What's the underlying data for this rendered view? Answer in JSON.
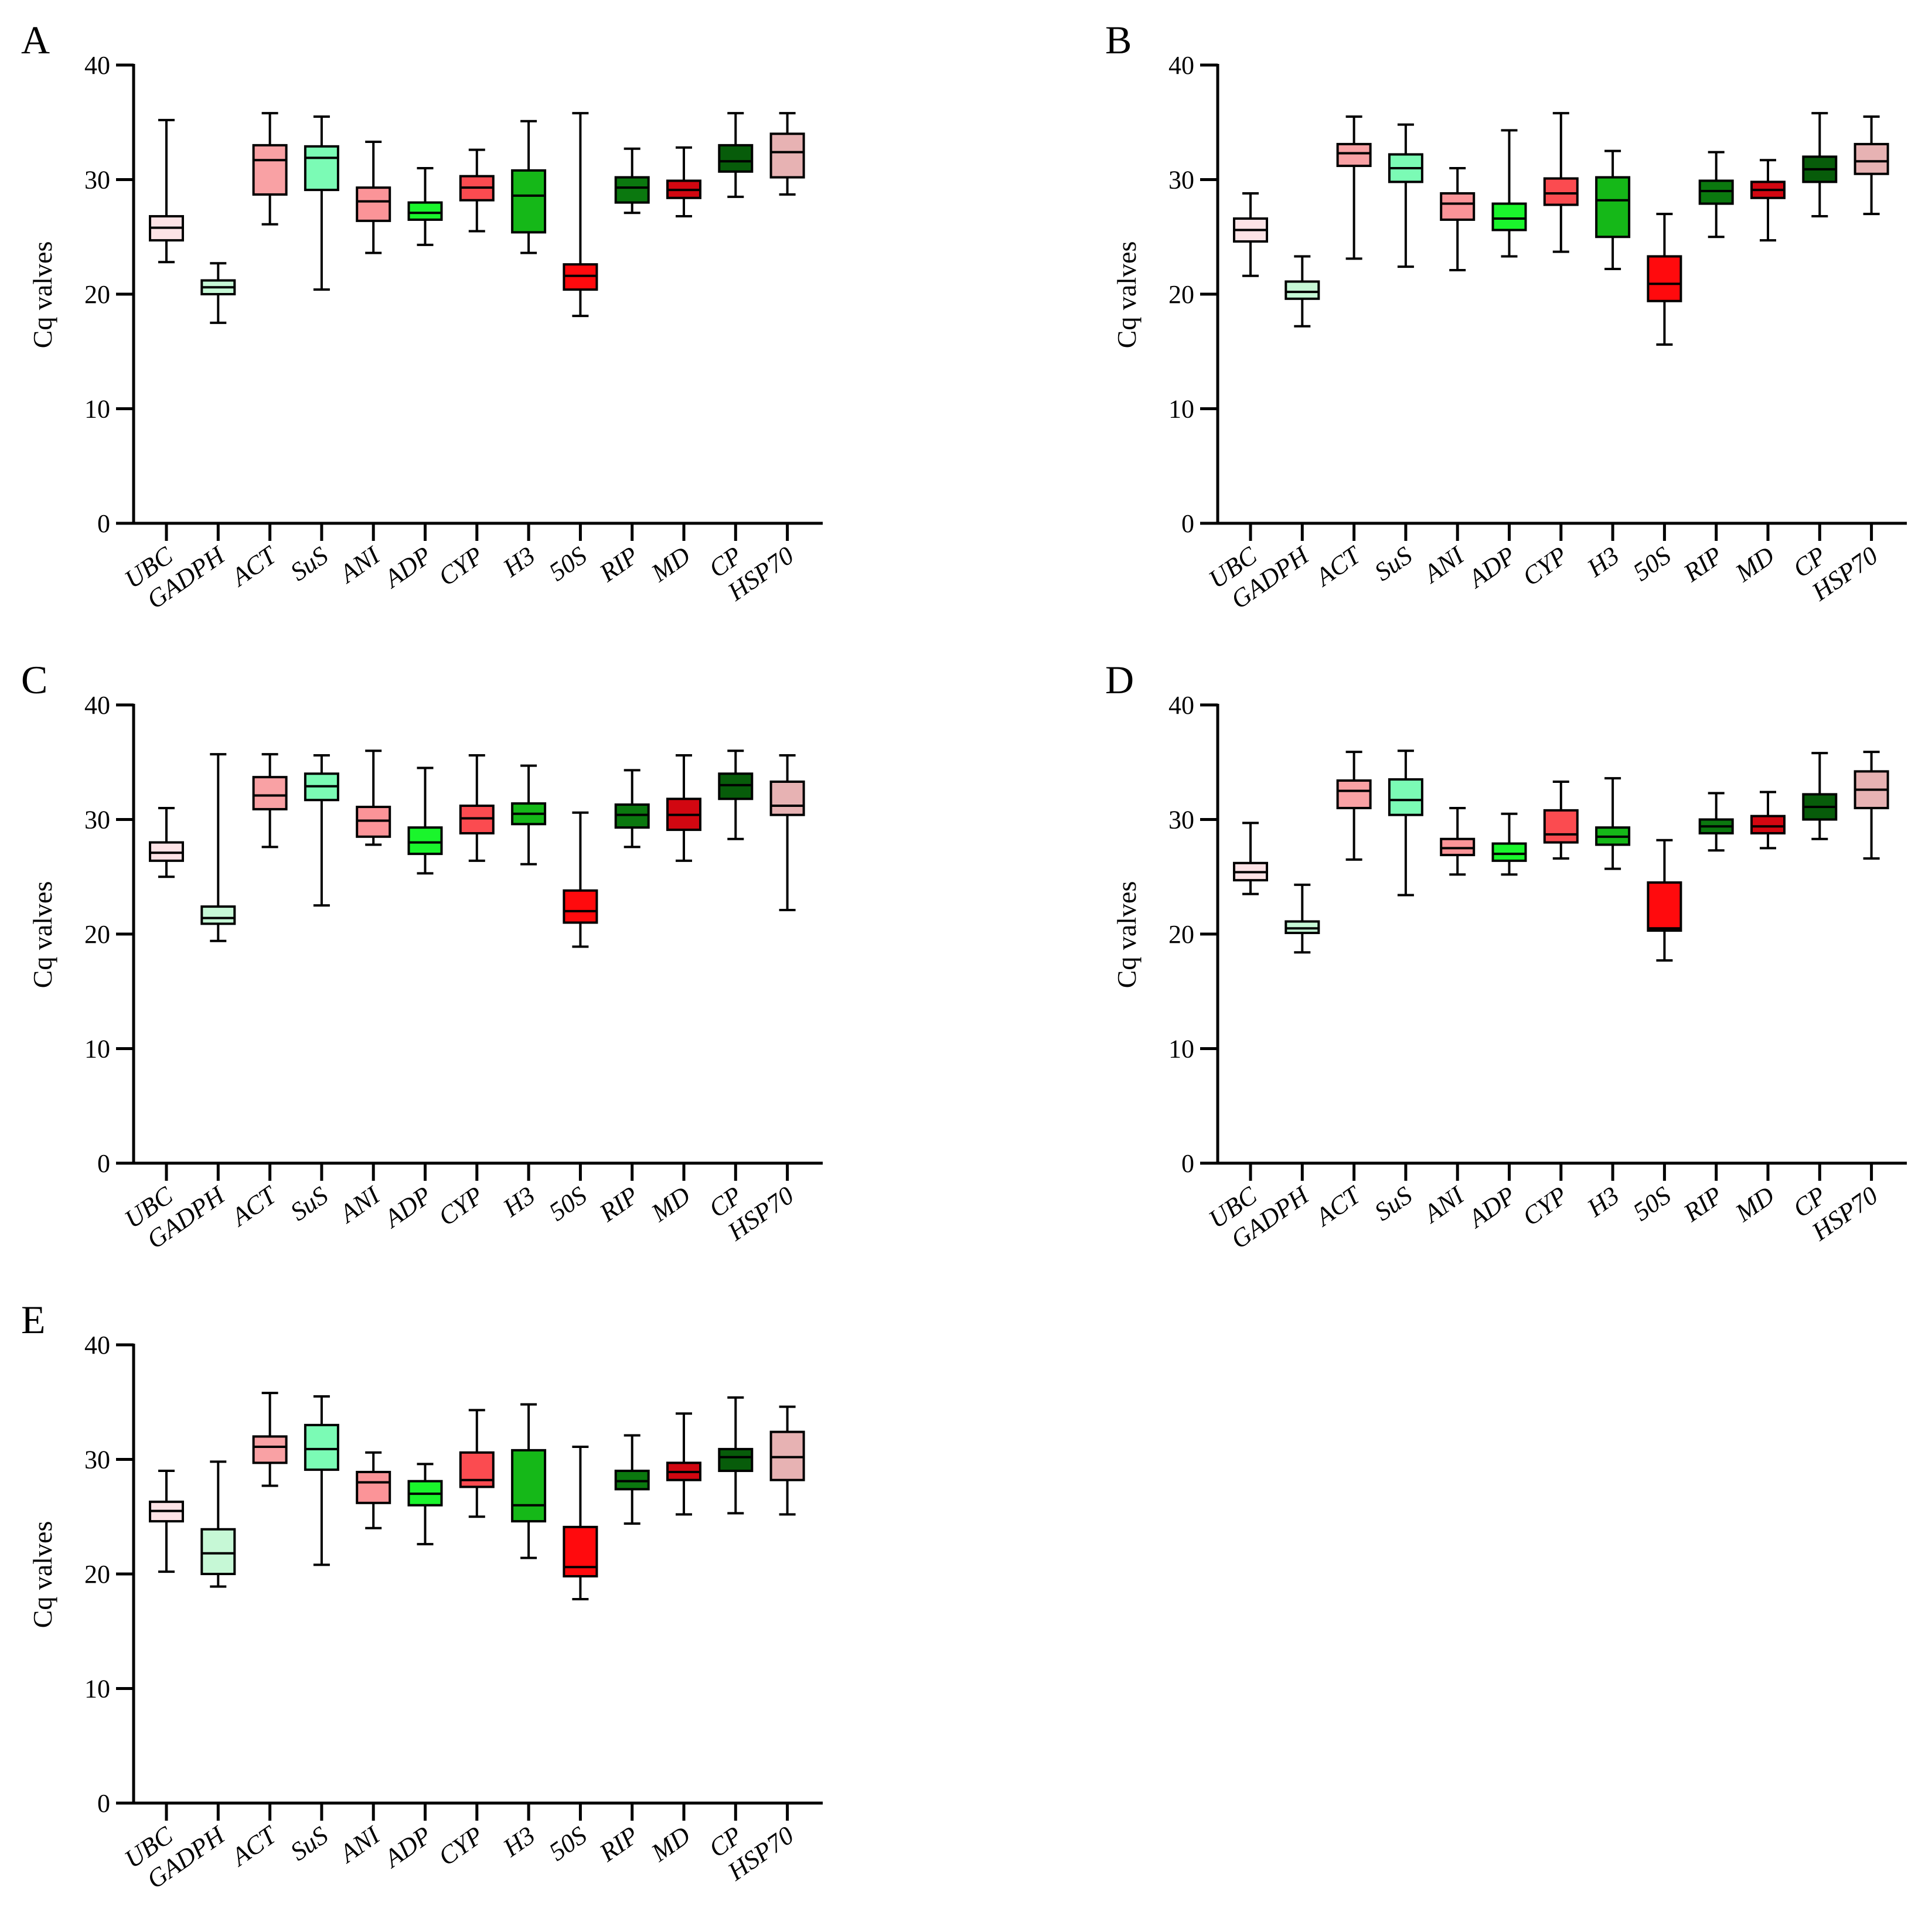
{
  "chart_data": [
    {
      "panel": "A",
      "type": "boxplot",
      "ylabel": "Cq valves",
      "ylim": [
        0,
        40
      ],
      "yticks": [
        0,
        10,
        20,
        30,
        40
      ],
      "categories": [
        "UBC",
        "GADPH",
        "ACT",
        "SuS",
        "ANI",
        "ADP",
        "CYP",
        "H3",
        "50S",
        "RIP",
        "MD",
        "CP",
        "HSP70"
      ],
      "boxes": [
        {
          "min": 22.8,
          "q1": 24.7,
          "median": 25.8,
          "q3": 26.8,
          "max": 35.2
        },
        {
          "min": 17.5,
          "q1": 20.0,
          "median": 20.6,
          "q3": 21.2,
          "max": 22.7
        },
        {
          "min": 26.1,
          "q1": 28.7,
          "median": 31.7,
          "q3": 33.0,
          "max": 35.8
        },
        {
          "min": 20.4,
          "q1": 29.1,
          "median": 31.9,
          "q3": 32.9,
          "max": 35.5
        },
        {
          "min": 23.6,
          "q1": 26.4,
          "median": 28.1,
          "q3": 29.3,
          "max": 33.3
        },
        {
          "min": 24.3,
          "q1": 26.5,
          "median": 27.1,
          "q3": 28.0,
          "max": 31.0
        },
        {
          "min": 25.5,
          "q1": 28.2,
          "median": 29.3,
          "q3": 30.3,
          "max": 32.6
        },
        {
          "min": 23.6,
          "q1": 25.4,
          "median": 28.6,
          "q3": 30.8,
          "max": 35.1
        },
        {
          "min": 18.1,
          "q1": 20.4,
          "median": 21.6,
          "q3": 22.6,
          "max": 35.8
        },
        {
          "min": 27.1,
          "q1": 28.0,
          "median": 29.3,
          "q3": 30.2,
          "max": 32.7
        },
        {
          "min": 26.8,
          "q1": 28.4,
          "median": 29.1,
          "q3": 29.9,
          "max": 32.8
        },
        {
          "min": 28.5,
          "q1": 30.7,
          "median": 31.6,
          "q3": 33.0,
          "max": 35.8
        },
        {
          "min": 28.7,
          "q1": 30.2,
          "median": 32.4,
          "q3": 34.0,
          "max": 35.8
        }
      ]
    },
    {
      "panel": "B",
      "type": "boxplot",
      "ylabel": "Cq valves",
      "ylim": [
        0,
        40
      ],
      "yticks": [
        0,
        10,
        20,
        30,
        40
      ],
      "categories": [
        "UBC",
        "GADPH",
        "ACT",
        "SuS",
        "ANI",
        "ADP",
        "CYP",
        "H3",
        "50S",
        "RIP",
        "MD",
        "CP",
        "HSP70"
      ],
      "boxes": [
        {
          "min": 21.6,
          "q1": 24.6,
          "median": 25.6,
          "q3": 26.6,
          "max": 28.8
        },
        {
          "min": 17.2,
          "q1": 19.6,
          "median": 20.2,
          "q3": 21.1,
          "max": 23.3
        },
        {
          "min": 23.1,
          "q1": 31.2,
          "median": 32.3,
          "q3": 33.1,
          "max": 35.5
        },
        {
          "min": 22.4,
          "q1": 29.8,
          "median": 31.0,
          "q3": 32.2,
          "max": 34.8
        },
        {
          "min": 22.1,
          "q1": 26.5,
          "median": 27.9,
          "q3": 28.8,
          "max": 31.0
        },
        {
          "min": 23.3,
          "q1": 25.6,
          "median": 26.6,
          "q3": 27.9,
          "max": 34.3
        },
        {
          "min": 23.7,
          "q1": 27.8,
          "median": 28.8,
          "q3": 30.1,
          "max": 35.8
        },
        {
          "min": 22.2,
          "q1": 25.0,
          "median": 28.2,
          "q3": 30.2,
          "max": 32.5
        },
        {
          "min": 15.6,
          "q1": 19.4,
          "median": 20.9,
          "q3": 23.3,
          "max": 27.0
        },
        {
          "min": 25.0,
          "q1": 27.9,
          "median": 29.0,
          "q3": 29.9,
          "max": 32.4
        },
        {
          "min": 24.7,
          "q1": 28.4,
          "median": 29.1,
          "q3": 29.8,
          "max": 31.7
        },
        {
          "min": 26.8,
          "q1": 29.8,
          "median": 30.9,
          "q3": 32.0,
          "max": 35.8
        },
        {
          "min": 27.0,
          "q1": 30.5,
          "median": 31.6,
          "q3": 33.1,
          "max": 35.5
        }
      ]
    },
    {
      "panel": "C",
      "type": "boxplot",
      "ylabel": "Cq valves",
      "ylim": [
        0,
        40
      ],
      "yticks": [
        0,
        10,
        20,
        30,
        40
      ],
      "categories": [
        "UBC",
        "GADPH",
        "ACT",
        "SuS",
        "ANI",
        "ADP",
        "CYP",
        "H3",
        "50S",
        "RIP",
        "MD",
        "CP",
        "HSP70"
      ],
      "boxes": [
        {
          "min": 25.0,
          "q1": 26.4,
          "median": 27.1,
          "q3": 28.0,
          "max": 31.0
        },
        {
          "min": 19.4,
          "q1": 20.9,
          "median": 21.4,
          "q3": 22.4,
          "max": 35.7
        },
        {
          "min": 27.6,
          "q1": 30.9,
          "median": 32.1,
          "q3": 33.7,
          "max": 35.7
        },
        {
          "min": 22.5,
          "q1": 31.7,
          "median": 32.9,
          "q3": 34.0,
          "max": 35.6
        },
        {
          "min": 27.8,
          "q1": 28.5,
          "median": 29.9,
          "q3": 31.1,
          "max": 36.0
        },
        {
          "min": 25.3,
          "q1": 27.0,
          "median": 28.0,
          "q3": 29.3,
          "max": 34.5
        },
        {
          "min": 26.4,
          "q1": 28.8,
          "median": 30.1,
          "q3": 31.2,
          "max": 35.6
        },
        {
          "min": 26.1,
          "q1": 29.6,
          "median": 30.5,
          "q3": 31.4,
          "max": 34.7
        },
        {
          "min": 18.9,
          "q1": 21.0,
          "median": 22.0,
          "q3": 23.8,
          "max": 30.6
        },
        {
          "min": 27.6,
          "q1": 29.3,
          "median": 30.4,
          "q3": 31.3,
          "max": 34.3
        },
        {
          "min": 26.4,
          "q1": 29.1,
          "median": 30.4,
          "q3": 31.8,
          "max": 35.6
        },
        {
          "min": 28.3,
          "q1": 31.8,
          "median": 33.0,
          "q3": 34.0,
          "max": 36.0
        },
        {
          "min": 22.1,
          "q1": 30.4,
          "median": 31.2,
          "q3": 33.3,
          "max": 35.6
        }
      ]
    },
    {
      "panel": "D",
      "type": "boxplot",
      "ylabel": "Cq valves",
      "ylim": [
        0,
        40
      ],
      "yticks": [
        0,
        10,
        20,
        30,
        40
      ],
      "categories": [
        "UBC",
        "GADPH",
        "ACT",
        "SuS",
        "ANI",
        "ADP",
        "CYP",
        "H3",
        "50S",
        "RIP",
        "MD",
        "CP",
        "HSP70"
      ],
      "boxes": [
        {
          "min": 23.5,
          "q1": 24.7,
          "median": 25.4,
          "q3": 26.2,
          "max": 29.7
        },
        {
          "min": 18.4,
          "q1": 20.1,
          "median": 20.5,
          "q3": 21.1,
          "max": 24.3
        },
        {
          "min": 26.5,
          "q1": 31.0,
          "median": 32.5,
          "q3": 33.4,
          "max": 35.9
        },
        {
          "min": 23.4,
          "q1": 30.4,
          "median": 31.7,
          "q3": 33.5,
          "max": 36.0
        },
        {
          "min": 25.2,
          "q1": 26.9,
          "median": 27.5,
          "q3": 28.3,
          "max": 31.0
        },
        {
          "min": 25.2,
          "q1": 26.4,
          "median": 27.0,
          "q3": 27.9,
          "max": 30.5
        },
        {
          "min": 26.6,
          "q1": 28.0,
          "median": 28.7,
          "q3": 30.8,
          "max": 33.3
        },
        {
          "min": 25.7,
          "q1": 27.8,
          "median": 28.5,
          "q3": 29.3,
          "max": 33.6
        },
        {
          "min": 17.7,
          "q1": 20.3,
          "median": 20.5,
          "q3": 24.5,
          "max": 28.2
        },
        {
          "min": 27.3,
          "q1": 28.8,
          "median": 29.4,
          "q3": 30.0,
          "max": 32.3
        },
        {
          "min": 27.5,
          "q1": 28.8,
          "median": 29.4,
          "q3": 30.3,
          "max": 32.4
        },
        {
          "min": 28.3,
          "q1": 30.0,
          "median": 31.1,
          "q3": 32.2,
          "max": 35.8
        },
        {
          "min": 26.6,
          "q1": 31.0,
          "median": 32.6,
          "q3": 34.2,
          "max": 35.9
        }
      ]
    },
    {
      "panel": "E",
      "type": "boxplot",
      "ylabel": "Cq valves",
      "ylim": [
        0,
        40
      ],
      "yticks": [
        0,
        10,
        20,
        30,
        40
      ],
      "categories": [
        "UBC",
        "GADPH",
        "ACT",
        "SuS",
        "ANI",
        "ADP",
        "CYP",
        "H3",
        "50S",
        "RIP",
        "MD",
        "CP",
        "HSP70"
      ],
      "boxes": [
        {
          "min": 20.2,
          "q1": 24.6,
          "median": 25.5,
          "q3": 26.3,
          "max": 29.0
        },
        {
          "min": 18.9,
          "q1": 20.0,
          "median": 21.8,
          "q3": 23.9,
          "max": 29.8
        },
        {
          "min": 27.7,
          "q1": 29.7,
          "median": 31.1,
          "q3": 32.0,
          "max": 35.8
        },
        {
          "min": 20.8,
          "q1": 29.1,
          "median": 30.9,
          "q3": 33.0,
          "max": 35.5
        },
        {
          "min": 24.0,
          "q1": 26.2,
          "median": 28.0,
          "q3": 28.9,
          "max": 30.6
        },
        {
          "min": 22.6,
          "q1": 26.0,
          "median": 27.0,
          "q3": 28.1,
          "max": 29.6
        },
        {
          "min": 25.0,
          "q1": 27.6,
          "median": 28.2,
          "q3": 30.6,
          "max": 34.3
        },
        {
          "min": 21.4,
          "q1": 24.6,
          "median": 26.0,
          "q3": 30.8,
          "max": 34.8
        },
        {
          "min": 17.8,
          "q1": 19.8,
          "median": 20.6,
          "q3": 24.1,
          "max": 31.1
        },
        {
          "min": 24.4,
          "q1": 27.4,
          "median": 28.1,
          "q3": 29.0,
          "max": 32.1
        },
        {
          "min": 25.2,
          "q1": 28.2,
          "median": 28.9,
          "q3": 29.7,
          "max": 34.0
        },
        {
          "min": 25.3,
          "q1": 29.0,
          "median": 30.2,
          "q3": 30.9,
          "max": 35.4
        },
        {
          "min": 25.2,
          "q1": 28.2,
          "median": 30.2,
          "q3": 32.4,
          "max": 34.6
        }
      ]
    }
  ],
  "colors": [
    "#fde3e6",
    "#c6f8d6",
    "#f9a1a4",
    "#7bfbb5",
    "#fb9498",
    "#1af52c",
    "#fb4b50",
    "#15b818",
    "#ff0a0d",
    "#0b780f",
    "#d20711",
    "#075c0a",
    "#e7b2b3"
  ],
  "line_color": "#000000"
}
